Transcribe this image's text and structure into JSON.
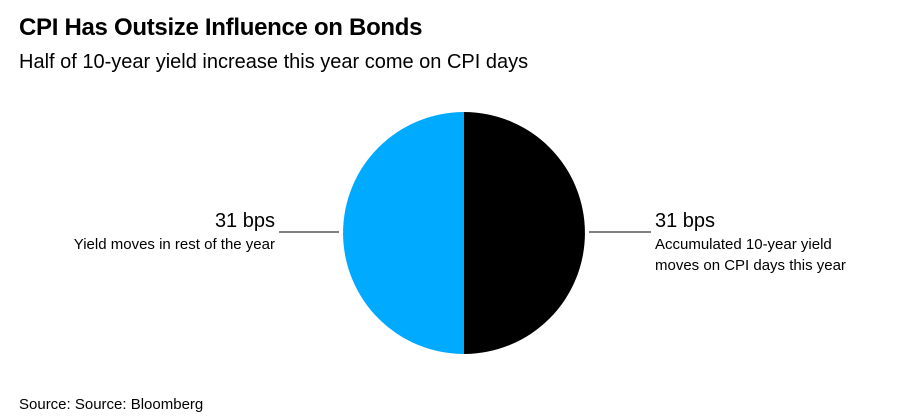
{
  "title": "CPI Has Outsize Influence on Bonds",
  "subtitle": "Half of 10-year yield increase this year come on CPI days",
  "source": "Source: Source: Bloomberg",
  "colors": {
    "left_slice": "#00aaff",
    "right_slice": "#000000",
    "leader": "#000000"
  },
  "chart_data": {
    "type": "pie",
    "slices": [
      {
        "value": 31,
        "value_label": "31 bps",
        "desc_lines": [
          "Accumulated 10-year yield",
          "moves on CPI days this year"
        ],
        "color": "#000000",
        "side": "right"
      },
      {
        "value": 31,
        "value_label": "31 bps",
        "desc_lines": [
          "Yield moves in rest of the year"
        ],
        "color": "#00aaff",
        "side": "left"
      }
    ]
  }
}
